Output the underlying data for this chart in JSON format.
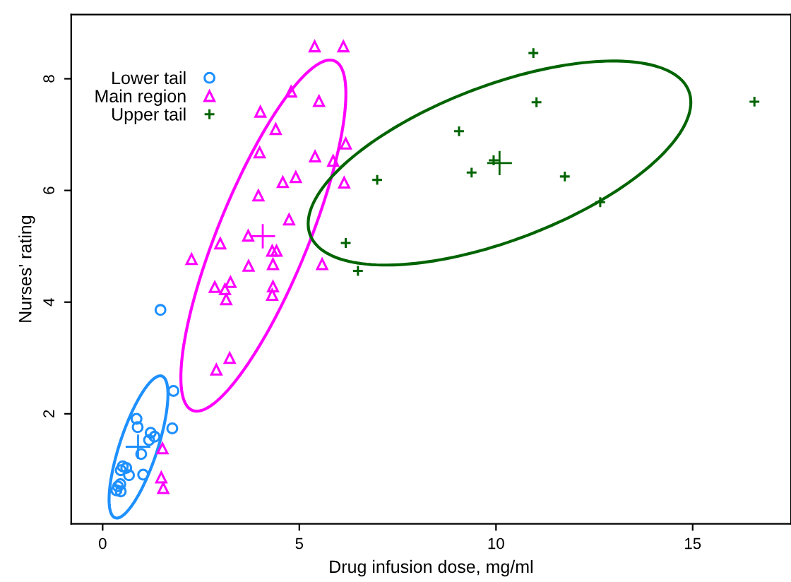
{
  "chart_data": {
    "type": "scatter",
    "xlabel": "Drug infusion dose, mg/ml",
    "ylabel": "Nurses' rating",
    "xlim": [
      -0.8,
      17.5
    ],
    "ylim": [
      0.03,
      9.15
    ],
    "xticks": [
      0,
      5,
      10,
      15
    ],
    "yticks": [
      2,
      4,
      6,
      8
    ],
    "grid": false,
    "legend": "top left",
    "series": [
      {
        "name": "Lower tail",
        "color": "#1e90ff",
        "marker": "circle",
        "x": [
          1.47,
          1.8,
          1.77,
          0.86,
          0.89,
          1.22,
          1.32,
          1.18,
          0.98,
          1.03,
          0.51,
          0.6,
          0.46,
          0.67,
          0.45,
          0.39,
          0.35,
          0.46
        ],
        "values": [
          3.86,
          2.41,
          1.74,
          1.91,
          1.76,
          1.66,
          1.59,
          1.53,
          1.28,
          0.91,
          1.06,
          1.03,
          0.99,
          0.9,
          0.74,
          0.7,
          0.63,
          0.61
        ]
      },
      {
        "name": "Main region",
        "color": "#ff00ff",
        "marker": "triangle",
        "x": [
          5.39,
          6.12,
          4.79,
          4.01,
          5.5,
          4.4,
          3.99,
          6.18,
          5.4,
          5.86,
          4.91,
          4.58,
          6.14,
          3.96,
          4.74,
          3.7,
          4.31,
          4.42,
          5.58,
          3.71,
          4.33,
          2.26,
          2.99,
          2.85,
          3.11,
          3.25,
          3.14,
          4.33,
          4.31,
          3.23,
          2.89,
          1.52,
          1.49,
          1.54
        ],
        "values": [
          8.58,
          8.58,
          7.77,
          7.41,
          7.6,
          7.1,
          6.68,
          6.84,
          6.61,
          6.53,
          6.24,
          6.15,
          6.14,
          5.91,
          5.48,
          5.19,
          4.92,
          4.92,
          4.68,
          4.65,
          4.68,
          4.77,
          5.05,
          4.27,
          4.23,
          4.36,
          4.05,
          4.28,
          4.13,
          3.0,
          2.79,
          1.38,
          0.86,
          0.67
        ]
      },
      {
        "name": "Upper tail",
        "color": "#006400",
        "marker": "cross",
        "x": [
          10.95,
          11.03,
          16.57,
          9.06,
          9.94,
          9.38,
          11.75,
          6.98,
          12.65,
          6.18,
          6.49
        ],
        "values": [
          8.46,
          7.58,
          7.59,
          7.06,
          6.54,
          6.32,
          6.25,
          6.19,
          5.79,
          5.06,
          4.56
        ]
      },
      {
        "type": "scatter",
        "color": "#1e90ff",
        "marker": "cross",
        "x": [
          0.9
        ],
        "values": [
          1.41
        ],
        "errors": [
          0.2
        ],
        "xerrors": [
          0.29
        ]
      },
      {
        "type": "scatter",
        "color": "#ff00ff",
        "marker": "cross",
        "x": [
          4.07
        ],
        "values": [
          5.18
        ],
        "errors": [
          0.2
        ],
        "xerrors": [
          0.29
        ]
      },
      {
        "type": "scatter",
        "color": "#006400",
        "marker": "cross",
        "x": [
          10.09
        ],
        "values": [
          6.49
        ],
        "errors": [
          0.2
        ],
        "xerrors": [
          0.29
        ]
      }
    ]
  }
}
